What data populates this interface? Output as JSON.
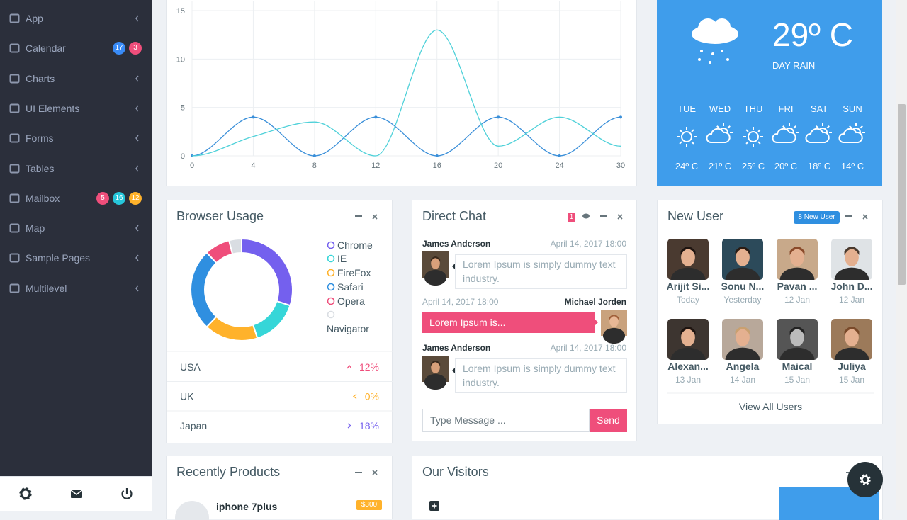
{
  "sidebar": {
    "menu": [
      {
        "label": "App"
      },
      {
        "label": "Calendar",
        "badges": [
          "17",
          "3"
        ]
      },
      {
        "label": "Charts"
      },
      {
        "label": "UI Elements"
      },
      {
        "label": "Forms"
      },
      {
        "label": "Tables"
      },
      {
        "label": "Mailbox",
        "badges": [
          "5",
          "16",
          "12"
        ]
      },
      {
        "label": "Map"
      },
      {
        "label": "Sample Pages"
      },
      {
        "label": "Multilevel"
      }
    ]
  },
  "chart_data": [
    {
      "type": "line",
      "categories": [
        "0",
        "4",
        "8",
        "12",
        "16",
        "20",
        "24",
        "30"
      ],
      "series": [
        {
          "color": "#3a8fd9",
          "values": [
            0,
            4,
            0,
            4,
            0,
            4,
            0,
            4
          ]
        },
        {
          "color": "#4fd1d9",
          "values": [
            0,
            2,
            3.5,
            0,
            13,
            1,
            4,
            1
          ]
        }
      ],
      "ylim": [
        0,
        15
      ],
      "yticks": [
        0,
        5,
        10,
        15
      ],
      "grid": true
    },
    {
      "type": "pie",
      "title": "Browser Usage",
      "categories": [
        "Chrome",
        "IE",
        "FireFox",
        "Safari",
        "Opera",
        "Navigator"
      ],
      "values": [
        30,
        15,
        17,
        26,
        8,
        4
      ],
      "colors": [
        "#7460ee",
        "#36d6d8",
        "#ffb22b",
        "#2f8fe0",
        "#ef4e7b",
        "#d9dde2"
      ],
      "donut": true
    }
  ],
  "weather": {
    "temperature": "29º C",
    "condition": "DAY RAIN",
    "forecast": [
      {
        "day": "TUE",
        "temp": "24º C"
      },
      {
        "day": "WED",
        "temp": "21º C"
      },
      {
        "day": "THU",
        "temp": "25º C"
      },
      {
        "day": "FRI",
        "temp": "20º C"
      },
      {
        "day": "SAT",
        "temp": "18º C"
      },
      {
        "day": "SUN",
        "temp": "14º C"
      }
    ]
  },
  "browser_usage": {
    "countries": [
      {
        "name": "USA",
        "change": "12%"
      },
      {
        "name": "UK",
        "change": "0%"
      },
      {
        "name": "Japan",
        "change": "18%"
      }
    ]
  },
  "direct_chat": {
    "title": "Direct Chat",
    "badge": "1",
    "messages": [
      {
        "name": "James Anderson",
        "date": "April 14, 2017 18:00",
        "text": "Lorem Ipsum is simply dummy text industry."
      },
      {
        "name": "Michael Jorden",
        "date": "April 14, 2017 18:00",
        "text": "Lorem Ipsum is..."
      },
      {
        "name": "James Anderson",
        "date": "April 14, 2017 18:00",
        "text": "Lorem Ipsum is simply dummy text industry."
      }
    ],
    "input_placeholder": "Type Message ...",
    "send": "Send"
  },
  "new_user": {
    "title": "New User",
    "badge": "8 New User",
    "users": [
      {
        "name": "Arijit Si...",
        "date": "Today"
      },
      {
        "name": "Sonu N...",
        "date": "Yesterday"
      },
      {
        "name": "Pavan ...",
        "date": "12 Jan"
      },
      {
        "name": "John D...",
        "date": "12 Jan"
      },
      {
        "name": "Alexan...",
        "date": "13 Jan"
      },
      {
        "name": "Angela",
        "date": "14 Jan"
      },
      {
        "name": "Maical",
        "date": "15 Jan"
      },
      {
        "name": "Juliya",
        "date": "15 Jan"
      }
    ],
    "view_all": "View All Users"
  },
  "recent_products": {
    "title": "Recently Products",
    "items": [
      {
        "name": "iphone 7plus",
        "price": "$300"
      }
    ]
  },
  "visitors": {
    "title": "Our Visitors"
  }
}
